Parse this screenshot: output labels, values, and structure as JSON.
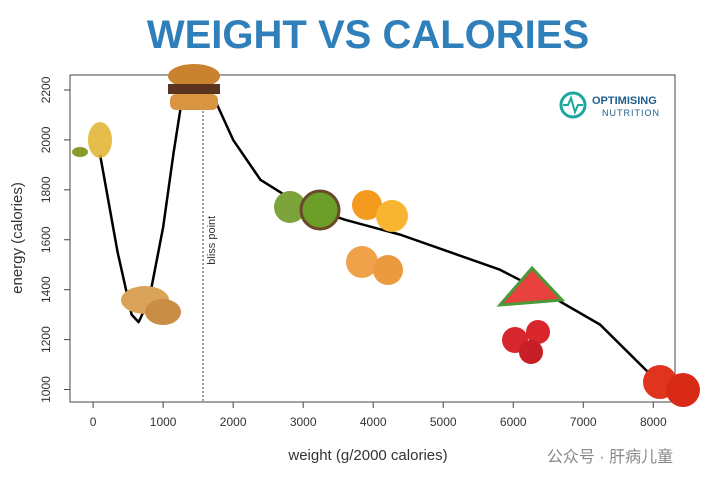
{
  "chart_data": {
    "type": "line",
    "title": "WEIGHT VS CALORIES",
    "x_label": "weight (g/2000 calories)",
    "y_label": "energy (calories)",
    "x": [
      100,
      350,
      550,
      650,
      800,
      1000,
      1150,
      1290,
      1500,
      1740,
      2000,
      2390,
      2960,
      3600,
      4390,
      5100,
      5810,
      6500,
      7240,
      7960
    ],
    "series": [
      {
        "color": "#000000",
        "values": [
          1940,
          1550,
          1300,
          1270,
          1360,
          1650,
          1950,
          2200,
          2240,
          2160,
          2000,
          1840,
          1740,
          1680,
          1620,
          1550,
          1480,
          1380,
          1260,
          1060
        ]
      }
    ],
    "xlim": [
      -330,
      8310
    ],
    "ylim": [
      950,
      2260
    ],
    "xticks": [
      0,
      1000,
      2000,
      3000,
      4000,
      5000,
      6000,
      7000,
      8000
    ],
    "yticks": [
      1000,
      1200,
      1400,
      1600,
      1800,
      2000,
      2200
    ],
    "annotation": {
      "x": 1570,
      "text": "bliss point"
    },
    "logo": {
      "line1": "OPTIMISING",
      "line2": "NUTRITION"
    },
    "watermark": "公众号 · 肝病儿童"
  }
}
